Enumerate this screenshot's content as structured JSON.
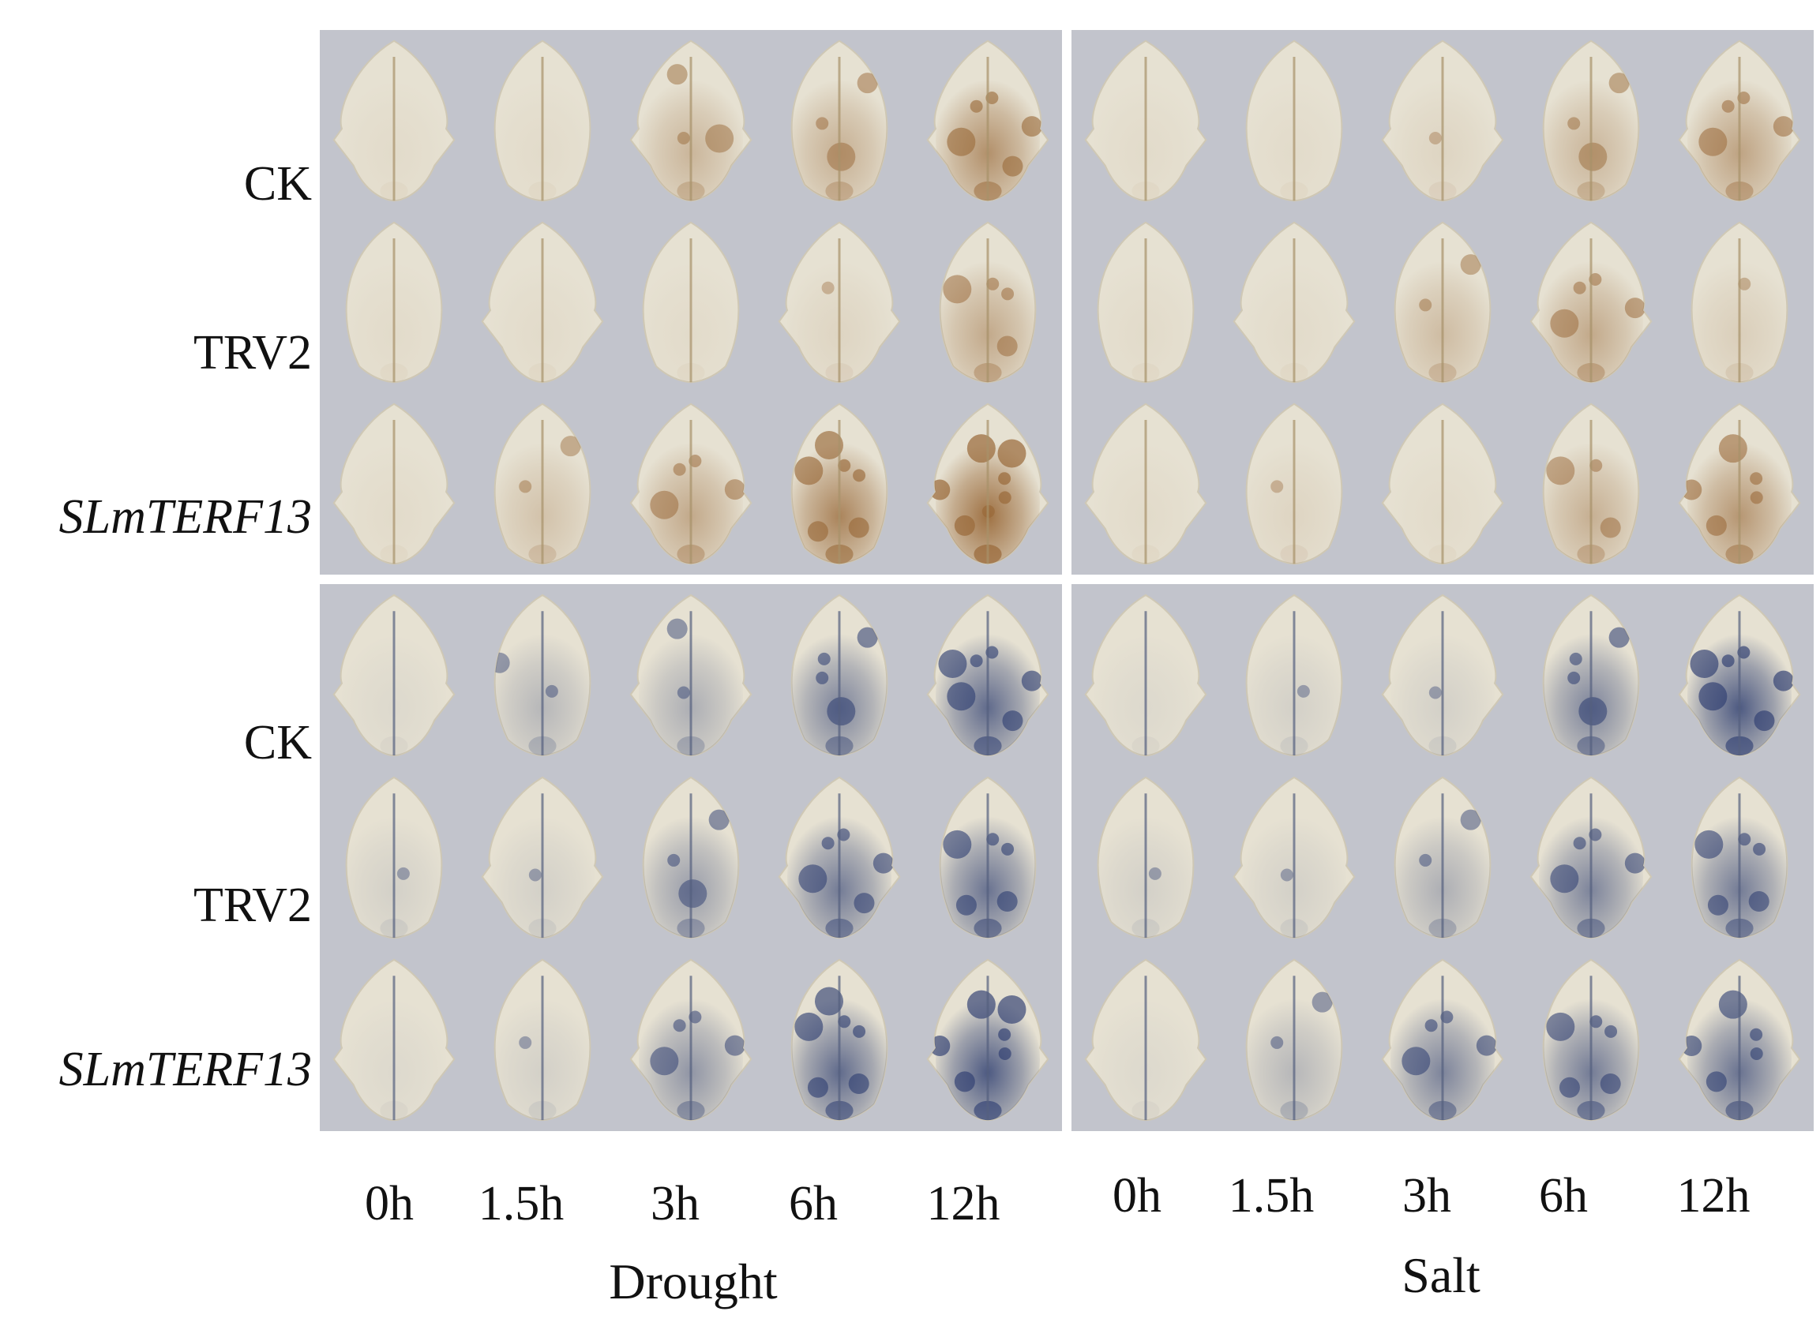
{
  "row_labels": {
    "ck": "CK",
    "trv2": "TRV2",
    "slm": "SLmTERF13"
  },
  "time_points": [
    "0h",
    "1.5h",
    "3h",
    "6h",
    "12h"
  ],
  "conditions": {
    "drought": "Drought",
    "salt": "Salt"
  },
  "colors": {
    "backdrop": "#c2c4cc",
    "leaf_pale": "#e6e1d2",
    "dab_brown": "#9a6a3a",
    "nbt_blue": "#2f3f72",
    "divider": "#ffffff"
  },
  "staining": {
    "top_panel": "brown",
    "bottom_panel": "blue",
    "drought": {
      "ck": [
        0.05,
        0.05,
        0.35,
        0.4,
        0.65
      ],
      "trv2": [
        0.05,
        0.05,
        0.05,
        0.1,
        0.45
      ],
      "slm": [
        0.05,
        0.25,
        0.45,
        0.75,
        0.9
      ]
    },
    "salt": {
      "ck": [
        0.05,
        0.05,
        0.1,
        0.35,
        0.5
      ],
      "trv2": [
        0.05,
        0.05,
        0.3,
        0.45,
        0.15
      ],
      "slm": [
        0.05,
        0.1,
        0.05,
        0.4,
        0.6
      ]
    },
    "drought_blue": {
      "ck": [
        0.05,
        0.25,
        0.3,
        0.55,
        0.7
      ],
      "trv2": [
        0.1,
        0.1,
        0.4,
        0.6,
        0.65
      ],
      "slm": [
        0.05,
        0.1,
        0.45,
        0.7,
        0.8
      ]
    },
    "salt_blue": {
      "ck": [
        0.05,
        0.1,
        0.1,
        0.55,
        0.8
      ],
      "trv2": [
        0.1,
        0.1,
        0.3,
        0.55,
        0.6
      ],
      "slm": [
        0.05,
        0.25,
        0.55,
        0.6,
        0.65
      ]
    }
  }
}
